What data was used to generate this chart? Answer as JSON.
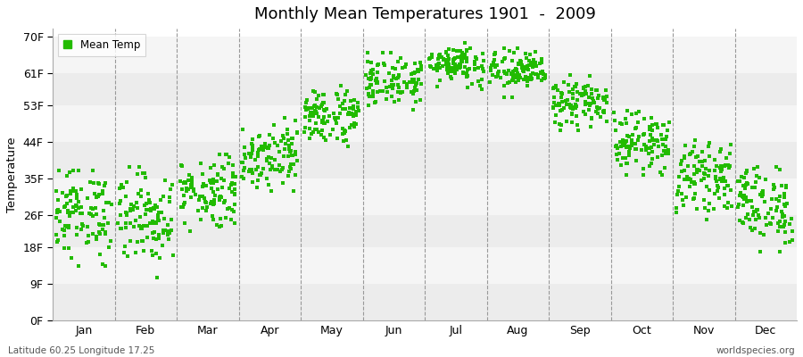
{
  "title": "Monthly Mean Temperatures 1901  -  2009",
  "ylabel": "Temperature",
  "xlabel_labels": [
    "Jan",
    "Feb",
    "Mar",
    "Apr",
    "May",
    "Jun",
    "Jul",
    "Aug",
    "Sep",
    "Oct",
    "Nov",
    "Dec"
  ],
  "ytick_values": [
    0,
    9,
    18,
    26,
    35,
    44,
    53,
    61,
    70
  ],
  "ytick_labels": [
    "0F",
    "9F",
    "18F",
    "26F",
    "35F",
    "44F",
    "53F",
    "61F",
    "70F"
  ],
  "ylim": [
    0,
    72
  ],
  "xlim": [
    0,
    12
  ],
  "dot_color": "#22bb00",
  "bg_colors": [
    "#ececec",
    "#f5f5f5"
  ],
  "legend_label": "Mean Temp",
  "footnote_left": "Latitude 60.25 Longitude 17.25",
  "footnote_right": "worldspecies.org",
  "n_years": 109,
  "monthly_means_F": [
    26.5,
    25.5,
    32.0,
    41.0,
    50.5,
    59.0,
    63.5,
    61.5,
    53.5,
    44.0,
    35.5,
    28.5
  ],
  "monthly_stds_F": [
    5.5,
    5.5,
    4.5,
    4.0,
    3.5,
    3.0,
    2.5,
    2.5,
    3.0,
    3.5,
    4.0,
    5.0
  ],
  "monthly_mins_F": [
    13.0,
    8.0,
    21.0,
    32.0,
    43.0,
    52.0,
    57.0,
    55.0,
    47.0,
    36.0,
    25.0,
    17.0
  ],
  "monthly_maxs_F": [
    37.0,
    38.0,
    41.0,
    50.0,
    60.0,
    66.0,
    70.0,
    68.0,
    61.0,
    53.0,
    46.0,
    38.0
  ]
}
